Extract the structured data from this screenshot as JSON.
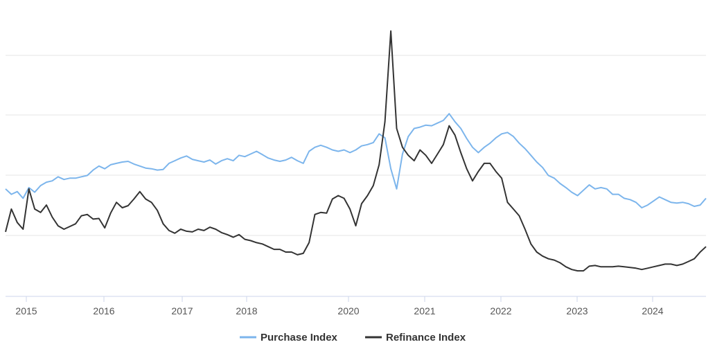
{
  "chart_data": {
    "type": "line",
    "title": "",
    "xlabel": "",
    "ylabel": "",
    "x_ticks": [
      "2015",
      "2016",
      "2017",
      "2018",
      "2020",
      "2021",
      "2022",
      "2023",
      "2024"
    ],
    "xlim": [
      "2014-09",
      "2024-09"
    ],
    "ylim": [
      0,
      400
    ],
    "y_axis_labels_visible": false,
    "grid": "horizontal",
    "legend_position": "bottom-center",
    "colors": {
      "purchase": "#7cb5ec",
      "refinance": "#333333",
      "grid": "#e6e6e6",
      "axis": "#ccd6eb"
    },
    "series": [
      {
        "name": "Purchase Index",
        "key": "purchase",
        "points": [
          [
            "2014-09",
            160
          ],
          [
            "2014-10",
            152
          ],
          [
            "2014-11",
            156
          ],
          [
            "2014-12",
            146
          ],
          [
            "2015-01",
            162
          ],
          [
            "2015-02",
            155
          ],
          [
            "2015-03",
            165
          ],
          [
            "2015-04",
            170
          ],
          [
            "2015-05",
            172
          ],
          [
            "2015-06",
            178
          ],
          [
            "2015-07",
            174
          ],
          [
            "2015-08",
            176
          ],
          [
            "2015-09",
            176
          ],
          [
            "2015-10",
            178
          ],
          [
            "2015-11",
            180
          ],
          [
            "2015-12",
            188
          ],
          [
            "2016-01",
            194
          ],
          [
            "2016-02",
            190
          ],
          [
            "2016-03",
            196
          ],
          [
            "2016-04",
            198
          ],
          [
            "2016-05",
            200
          ],
          [
            "2016-06",
            201
          ],
          [
            "2016-07",
            197
          ],
          [
            "2016-08",
            194
          ],
          [
            "2016-09",
            191
          ],
          [
            "2016-10",
            190
          ],
          [
            "2016-11",
            188
          ],
          [
            "2016-12",
            189
          ],
          [
            "2017-01",
            198
          ],
          [
            "2017-02",
            202
          ],
          [
            "2017-03",
            206
          ],
          [
            "2017-04",
            209
          ],
          [
            "2017-05",
            204
          ],
          [
            "2017-06",
            202
          ],
          [
            "2017-07",
            200
          ],
          [
            "2017-08",
            203
          ],
          [
            "2017-09",
            197
          ],
          [
            "2017-10",
            202
          ],
          [
            "2017-11",
            205
          ],
          [
            "2017-12",
            202
          ],
          [
            "2018-01",
            210
          ],
          [
            "2018-02",
            208
          ],
          [
            "2018-03",
            212
          ],
          [
            "2018-04",
            216
          ],
          [
            "2018-05",
            211
          ],
          [
            "2018-06",
            206
          ],
          [
            "2018-07",
            203
          ],
          [
            "2018-08",
            201
          ],
          [
            "2018-09",
            203
          ],
          [
            "2018-10",
            207
          ],
          [
            "2018-11",
            202
          ],
          [
            "2018-12",
            198
          ],
          [
            "2019-01",
            216
          ],
          [
            "2019-02",
            222
          ],
          [
            "2019-03",
            225
          ],
          [
            "2019-04",
            222
          ],
          [
            "2019-05",
            218
          ],
          [
            "2019-06",
            216
          ],
          [
            "2019-07",
            218
          ],
          [
            "2019-08",
            214
          ],
          [
            "2019-09",
            218
          ],
          [
            "2019-10",
            224
          ],
          [
            "2019-11",
            226
          ],
          [
            "2019-12",
            229
          ],
          [
            "2020-01",
            242
          ],
          [
            "2020-02",
            236
          ],
          [
            "2020-03",
            190
          ],
          [
            "2020-04",
            160
          ],
          [
            "2020-05",
            212
          ],
          [
            "2020-06",
            238
          ],
          [
            "2020-07",
            250
          ],
          [
            "2020-08",
            252
          ],
          [
            "2020-09",
            255
          ],
          [
            "2020-10",
            254
          ],
          [
            "2020-11",
            258
          ],
          [
            "2020-12",
            262
          ],
          [
            "2021-01",
            272
          ],
          [
            "2021-02",
            260
          ],
          [
            "2021-03",
            250
          ],
          [
            "2021-04",
            235
          ],
          [
            "2021-05",
            222
          ],
          [
            "2021-06",
            214
          ],
          [
            "2021-07",
            222
          ],
          [
            "2021-08",
            228
          ],
          [
            "2021-09",
            236
          ],
          [
            "2021-10",
            242
          ],
          [
            "2021-11",
            244
          ],
          [
            "2021-12",
            238
          ],
          [
            "2022-01",
            228
          ],
          [
            "2022-02",
            220
          ],
          [
            "2022-03",
            210
          ],
          [
            "2022-04",
            200
          ],
          [
            "2022-05",
            192
          ],
          [
            "2022-06",
            180
          ],
          [
            "2022-07",
            176
          ],
          [
            "2022-08",
            168
          ],
          [
            "2022-09",
            162
          ],
          [
            "2022-10",
            155
          ],
          [
            "2022-11",
            150
          ],
          [
            "2022-12",
            158
          ],
          [
            "2023-01",
            166
          ],
          [
            "2023-02",
            160
          ],
          [
            "2023-03",
            162
          ],
          [
            "2023-04",
            160
          ],
          [
            "2023-05",
            152
          ],
          [
            "2023-06",
            152
          ],
          [
            "2023-07",
            146
          ],
          [
            "2023-08",
            144
          ],
          [
            "2023-09",
            140
          ],
          [
            "2023-10",
            132
          ],
          [
            "2023-11",
            136
          ],
          [
            "2023-12",
            142
          ],
          [
            "2024-01",
            148
          ],
          [
            "2024-02",
            144
          ],
          [
            "2024-03",
            140
          ],
          [
            "2024-04",
            139
          ],
          [
            "2024-05",
            140
          ],
          [
            "2024-06",
            138
          ],
          [
            "2024-07",
            134
          ],
          [
            "2024-08",
            136
          ],
          [
            "2024-09",
            146
          ]
        ]
      },
      {
        "name": "Refinance Index",
        "key": "refinance",
        "points": [
          [
            "2014-09",
            96
          ],
          [
            "2014-10",
            130
          ],
          [
            "2014-11",
            110
          ],
          [
            "2014-12",
            100
          ],
          [
            "2015-01",
            160
          ],
          [
            "2015-02",
            130
          ],
          [
            "2015-03",
            125
          ],
          [
            "2015-04",
            136
          ],
          [
            "2015-05",
            118
          ],
          [
            "2015-06",
            105
          ],
          [
            "2015-07",
            100
          ],
          [
            "2015-08",
            104
          ],
          [
            "2015-09",
            108
          ],
          [
            "2015-10",
            120
          ],
          [
            "2015-11",
            122
          ],
          [
            "2015-12",
            115
          ],
          [
            "2016-01",
            116
          ],
          [
            "2016-02",
            102
          ],
          [
            "2016-03",
            124
          ],
          [
            "2016-04",
            140
          ],
          [
            "2016-05",
            132
          ],
          [
            "2016-06",
            135
          ],
          [
            "2016-07",
            145
          ],
          [
            "2016-08",
            156
          ],
          [
            "2016-09",
            145
          ],
          [
            "2016-10",
            140
          ],
          [
            "2016-11",
            128
          ],
          [
            "2016-12",
            108
          ],
          [
            "2017-01",
            98
          ],
          [
            "2017-02",
            94
          ],
          [
            "2017-03",
            100
          ],
          [
            "2017-04",
            97
          ],
          [
            "2017-05",
            96
          ],
          [
            "2017-06",
            100
          ],
          [
            "2017-07",
            98
          ],
          [
            "2017-08",
            103
          ],
          [
            "2017-09",
            100
          ],
          [
            "2017-10",
            95
          ],
          [
            "2017-11",
            92
          ],
          [
            "2017-12",
            88
          ],
          [
            "2018-01",
            92
          ],
          [
            "2018-02",
            85
          ],
          [
            "2018-03",
            83
          ],
          [
            "2018-04",
            80
          ],
          [
            "2018-05",
            78
          ],
          [
            "2018-06",
            74
          ],
          [
            "2018-07",
            70
          ],
          [
            "2018-08",
            70
          ],
          [
            "2018-09",
            66
          ],
          [
            "2018-10",
            66
          ],
          [
            "2018-11",
            62
          ],
          [
            "2018-12",
            64
          ],
          [
            "2019-01",
            80
          ],
          [
            "2019-02",
            122
          ],
          [
            "2019-03",
            125
          ],
          [
            "2019-04",
            124
          ],
          [
            "2019-05",
            145
          ],
          [
            "2019-06",
            150
          ],
          [
            "2019-07",
            146
          ],
          [
            "2019-08",
            130
          ],
          [
            "2019-09",
            105
          ],
          [
            "2019-10",
            138
          ],
          [
            "2019-11",
            150
          ],
          [
            "2019-12",
            165
          ],
          [
            "2020-01",
            196
          ],
          [
            "2020-02",
            260
          ],
          [
            "2020-03",
            395
          ],
          [
            "2020-04",
            250
          ],
          [
            "2020-05",
            222
          ],
          [
            "2020-06",
            210
          ],
          [
            "2020-07",
            202
          ],
          [
            "2020-08",
            218
          ],
          [
            "2020-09",
            210
          ],
          [
            "2020-10",
            198
          ],
          [
            "2020-11",
            212
          ],
          [
            "2020-12",
            226
          ],
          [
            "2021-01",
            254
          ],
          [
            "2021-02",
            240
          ],
          [
            "2021-03",
            214
          ],
          [
            "2021-04",
            190
          ],
          [
            "2021-05",
            172
          ],
          [
            "2021-06",
            186
          ],
          [
            "2021-07",
            198
          ],
          [
            "2021-08",
            198
          ],
          [
            "2021-09",
            186
          ],
          [
            "2021-10",
            176
          ],
          [
            "2021-11",
            140
          ],
          [
            "2021-12",
            130
          ],
          [
            "2022-01",
            120
          ],
          [
            "2022-02",
            100
          ],
          [
            "2022-03",
            78
          ],
          [
            "2022-04",
            66
          ],
          [
            "2022-05",
            60
          ],
          [
            "2022-06",
            56
          ],
          [
            "2022-07",
            54
          ],
          [
            "2022-08",
            50
          ],
          [
            "2022-09",
            44
          ],
          [
            "2022-10",
            40
          ],
          [
            "2022-11",
            38
          ],
          [
            "2022-12",
            38
          ],
          [
            "2023-01",
            45
          ],
          [
            "2023-02",
            46
          ],
          [
            "2023-03",
            44
          ],
          [
            "2023-04",
            44
          ],
          [
            "2023-05",
            44
          ],
          [
            "2023-06",
            45
          ],
          [
            "2023-07",
            44
          ],
          [
            "2023-08",
            43
          ],
          [
            "2023-09",
            42
          ],
          [
            "2023-10",
            40
          ],
          [
            "2023-11",
            42
          ],
          [
            "2023-12",
            44
          ],
          [
            "2024-01",
            46
          ],
          [
            "2024-02",
            48
          ],
          [
            "2024-03",
            48
          ],
          [
            "2024-04",
            46
          ],
          [
            "2024-05",
            48
          ],
          [
            "2024-06",
            52
          ],
          [
            "2024-07",
            56
          ],
          [
            "2024-08",
            66
          ],
          [
            "2024-09",
            74
          ]
        ]
      }
    ]
  }
}
